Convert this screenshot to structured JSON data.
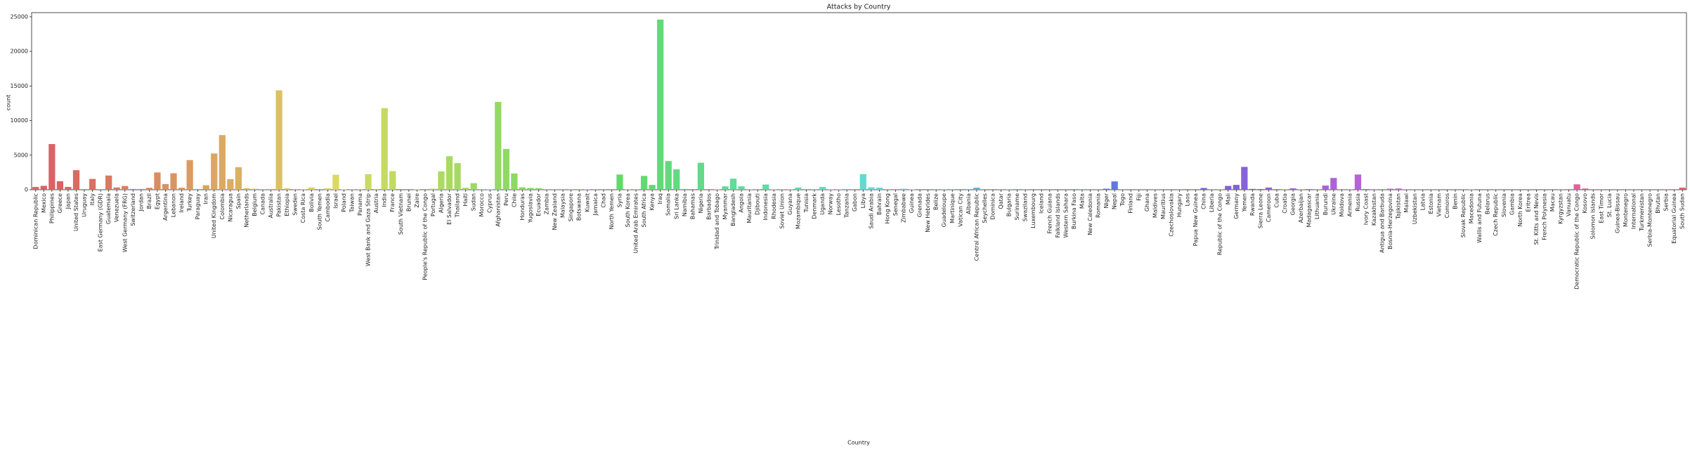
{
  "chart_data": {
    "type": "bar",
    "title": "Attacks by Country",
    "xlabel": "Country",
    "ylabel": "count",
    "palette": "husl",
    "categories": [
      "Dominican Republic",
      "Mexico",
      "Philippines",
      "Greece",
      "Japan",
      "United States",
      "Uruguay",
      "Italy",
      "East Germany (GDR)",
      "Guatemala",
      "Venezuela",
      "West Germany (FRG)",
      "Switzerland",
      "Jordan",
      "Brazil",
      "Egypt",
      "Argentina",
      "Lebanon",
      "Ireland",
      "Turkey",
      "Paraguay",
      "Iran",
      "United Kingdom",
      "Colombia",
      "Nicaragua",
      "Spain",
      "Netherlands",
      "Belgium",
      "Canada",
      "Australia",
      "Pakistan",
      "Ethiopia",
      "Sweden",
      "Costa Rica",
      "Bolivia",
      "South Yemen",
      "Cambodia",
      "Israel",
      "Poland",
      "Taiwan",
      "Panama",
      "West Bank and Gaza Strip",
      "Austria",
      "India",
      "France",
      "South Vietnam",
      "Brunei",
      "Zaire",
      "People's Republic of the Congo",
      "Portugal",
      "Algeria",
      "El Salvador",
      "Thailand",
      "Haiti",
      "Sudan",
      "Morocco",
      "Cyprus",
      "Afghanistan",
      "Peru",
      "Chile",
      "Honduras",
      "Yugoslavia",
      "Ecuador",
      "Zambia",
      "New Zealand",
      "Malaysia",
      "Singapore",
      "Botswana",
      "Kuwait",
      "Jamaica",
      "Chad",
      "North Yemen",
      "Syria",
      "South Korea",
      "United Arab Emirates",
      "South Africa",
      "Kenya",
      "Iraq",
      "Somalia",
      "Sri Lanka",
      "Namibia",
      "Bahamas",
      "Nigeria",
      "Barbados",
      "Trinidad and Tobago",
      "Myanmar",
      "Bangladesh",
      "Angola",
      "Mauritania",
      "Djibouti",
      "Indonesia",
      "Rhodesia",
      "Soviet Union",
      "Guyana",
      "Mozambique",
      "Tunisia",
      "Denmark",
      "Uganda",
      "Norway",
      "Lesotho",
      "Tanzania",
      "Gabon",
      "Libya",
      "Saudi Arabia",
      "Bahrain",
      "Hong Kong",
      "Senegal",
      "Zimbabwe",
      "Guinea",
      "Grenada",
      "New Hebrides",
      "Belize",
      "Guadeloupe",
      "Martinique",
      "Vatican City",
      "Albania",
      "Central African Republic",
      "Seychelles",
      "Dominica",
      "Qatar",
      "Bulgaria",
      "Suriname",
      "Swaziland",
      "Luxembourg",
      "Iceland",
      "French Guiana",
      "Falkland Islands",
      "Western Sahara",
      "Burkina Faso",
      "Malta",
      "New Caledonia",
      "Romania",
      "Niger",
      "Nepal",
      "Togo",
      "Finland",
      "Fiji",
      "Ghana",
      "Maldives",
      "Mauritius",
      "Czechoslovakia",
      "Hungary",
      "Laos",
      "Papua New Guinea",
      "China",
      "Liberia",
      "Republic of the Congo",
      "Mali",
      "Germany",
      "Yemen",
      "Rwanda",
      "Sierra Leone",
      "Cameroon",
      "Cuba",
      "Croatia",
      "Georgia",
      "Azerbaijan",
      "Madagascar",
      "Lithuania",
      "Burundi",
      "Ukraine",
      "Moldova",
      "Armenia",
      "Russia",
      "Ivory Coast",
      "Kazakhstan",
      "Antigua and Barbuda",
      "Bosnia-Herzegovina",
      "Tajikistan",
      "Malawi",
      "Uzbekistan",
      "Latvia",
      "Estonia",
      "Vietnam",
      "Comoros",
      "Benin",
      "Slovak Republic",
      "Macedonia",
      "Wallis and Futuna",
      "Belarus",
      "Czech Republic",
      "Slovenia",
      "Gambia",
      "North Korea",
      "Eritrea",
      "St. Kitts and Nevis",
      "French Polynesia",
      "Macau",
      "Kyrgyzstan",
      "Vanuatu",
      "Democratic Republic of the Congo",
      "Kosovo",
      "Solomon Islands",
      "East Timor",
      "St. Lucia",
      "Guinea-Bissau",
      "Montenegro",
      "International",
      "Turkmenistan",
      "Serbia-Montenegro",
      "Bhutan",
      "Serbia",
      "Equatorial Guinea",
      "South Sudan"
    ],
    "values": [
      400,
      560,
      6600,
      1230,
      400,
      2830,
      80,
      1560,
      10,
      2050,
      330,
      540,
      110,
      110,
      280,
      2500,
      820,
      2380,
      290,
      4290,
      100,
      650,
      5240,
      7900,
      1530,
      3250,
      200,
      140,
      100,
      120,
      14370,
      190,
      110,
      70,
      330,
      10,
      220,
      2170,
      50,
      30,
      110,
      2250,
      120,
      11800,
      2690,
      1,
      1,
      50,
      10,
      150,
      2650,
      4850,
      3850,
      280,
      950,
      90,
      60,
      12700,
      5900,
      2350,
      350,
      260,
      230,
      80,
      20,
      90,
      30,
      20,
      60,
      20,
      90,
      5,
      2200,
      60,
      30,
      2000,
      700,
      24600,
      4150,
      2950,
      110,
      5,
      3900,
      5,
      50,
      480,
      1600,
      490,
      40,
      20,
      750,
      60,
      80,
      40,
      330,
      110,
      90,
      400,
      60,
      40,
      110,
      10,
      2250,
      350,
      300,
      20,
      100,
      140,
      50,
      5,
      2,
      20,
      30,
      20,
      2,
      80,
      300,
      5,
      3,
      20,
      40,
      10,
      30,
      10,
      5,
      10,
      1,
      5,
      80,
      20,
      20,
      20,
      150,
      1200,
      30,
      10,
      20,
      60,
      30,
      10,
      5,
      20,
      70,
      70,
      250,
      60,
      50,
      550,
      700,
      3300,
      120,
      100,
      320,
      80,
      50,
      200,
      40,
      90,
      20,
      600,
      1700,
      10,
      30,
      2200,
      100,
      20,
      1,
      150,
      180,
      20,
      20,
      20,
      20,
      10,
      10,
      10,
      10,
      50,
      1,
      10,
      20,
      5,
      5,
      5,
      10,
      1,
      1,
      5,
      20,
      1,
      780,
      180,
      10,
      10,
      1,
      10,
      10,
      70,
      5,
      10,
      10,
      20,
      5,
      300
    ],
    "ylim": [
      0,
      25600
    ],
    "yticks": [
      0,
      5000,
      10000,
      15000,
      20000,
      25000
    ],
    "grid": false
  }
}
